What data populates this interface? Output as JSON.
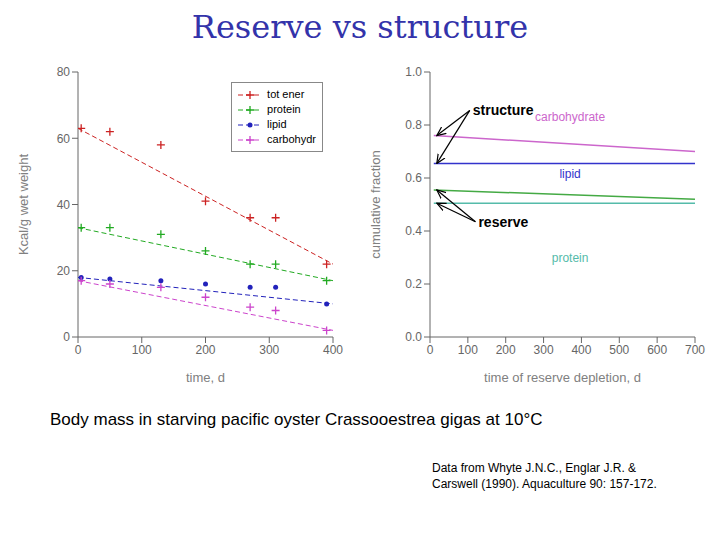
{
  "title": "Reserve vs structure",
  "annotations": [
    "Body mass in starving pacific oyster Crassooestrea gigas at 10°C",
    "Data from Whyte J.N.C., Englar J.R. &\nCarswell (1990). Aquaculture 90: 157-172."
  ],
  "chart_data": [
    {
      "type": "scatter",
      "xlabel": "time, d",
      "ylabel": "Kcal/g wet weight",
      "xlim": [
        0,
        400
      ],
      "ylim": [
        0,
        80
      ],
      "xticks": [
        0,
        100,
        200,
        300,
        400
      ],
      "yticks": [
        0,
        20,
        40,
        60,
        80
      ],
      "legend": "upper right",
      "series": [
        {
          "name": "tot ener",
          "color": "#cc2222",
          "marker": "+",
          "line_style": "dashed",
          "x": [
            5,
            50,
            130,
            200,
            270,
            310,
            390
          ],
          "values": [
            63,
            62,
            58,
            41,
            36,
            36,
            22
          ],
          "trend": {
            "x": [
              0,
              400
            ],
            "values": [
              63,
              22
            ]
          }
        },
        {
          "name": "protein",
          "color": "#22aa22",
          "marker": "+",
          "line_style": "dashed",
          "x": [
            5,
            50,
            130,
            200,
            270,
            310,
            390
          ],
          "values": [
            33,
            33,
            31,
            26,
            22,
            22,
            17
          ],
          "trend": {
            "x": [
              0,
              400
            ],
            "values": [
              33,
              17
            ]
          }
        },
        {
          "name": "lipid",
          "color": "#2222bb",
          "marker": ".",
          "line_style": "dashed",
          "x": [
            5,
            50,
            130,
            200,
            270,
            310,
            390
          ],
          "values": [
            18,
            17.5,
            17,
            16,
            15,
            15,
            10
          ],
          "trend": {
            "x": [
              0,
              400
            ],
            "values": [
              18,
              10
            ]
          }
        },
        {
          "name": "carbohydr",
          "color": "#cc44cc",
          "marker": "+",
          "line_style": "dashed",
          "x": [
            5,
            50,
            130,
            200,
            270,
            310,
            390
          ],
          "values": [
            17,
            16,
            15,
            12,
            9,
            8,
            2
          ],
          "trend": {
            "x": [
              0,
              400
            ],
            "values": [
              17,
              2
            ]
          }
        }
      ]
    },
    {
      "type": "line",
      "xlabel": "time of reserve depletion, d",
      "ylabel": "cumulative fraction",
      "xlim": [
        0,
        700
      ],
      "ylim": [
        0,
        1
      ],
      "xticks": [
        0,
        100,
        200,
        300,
        400,
        500,
        600,
        700
      ],
      "yticks": [
        {
          "value": 0,
          "label": "0.0"
        },
        0.2,
        0.4,
        0.6,
        0.8,
        {
          "value": 1.0,
          "label": "1.0"
        }
      ],
      "x": [
        10,
        700
      ],
      "series": [
        {
          "color": "#cc66cc",
          "values": [
            0.76,
            0.7
          ]
        },
        {
          "color": "#3333cc",
          "values": [
            0.655,
            0.655
          ]
        },
        {
          "color": "#44aa44",
          "values": [
            0.555,
            0.52
          ]
        },
        {
          "color": "#55bbaa",
          "values": [
            0.505,
            0.505
          ]
        }
      ],
      "annotations": [
        {
          "text": "carbohydrate",
          "x": 370,
          "y": 0.83,
          "color": "#cc66cc"
        },
        {
          "text": "lipid",
          "x": 370,
          "y": 0.615,
          "color": "#3333cc"
        },
        {
          "text": "protein",
          "x": 370,
          "y": 0.3,
          "color": "#55bbaa"
        },
        {
          "text": "structure",
          "x": 105,
          "y": 0.855,
          "arrows": [
            {
              "x": 18,
              "y": 0.76
            },
            {
              "x": 18,
              "y": 0.655
            }
          ]
        },
        {
          "text": "reserve",
          "x": 120,
          "y": 0.435,
          "arrows": [
            {
              "x": 18,
              "y": 0.555
            },
            {
              "x": 18,
              "y": 0.505
            }
          ]
        }
      ]
    }
  ]
}
